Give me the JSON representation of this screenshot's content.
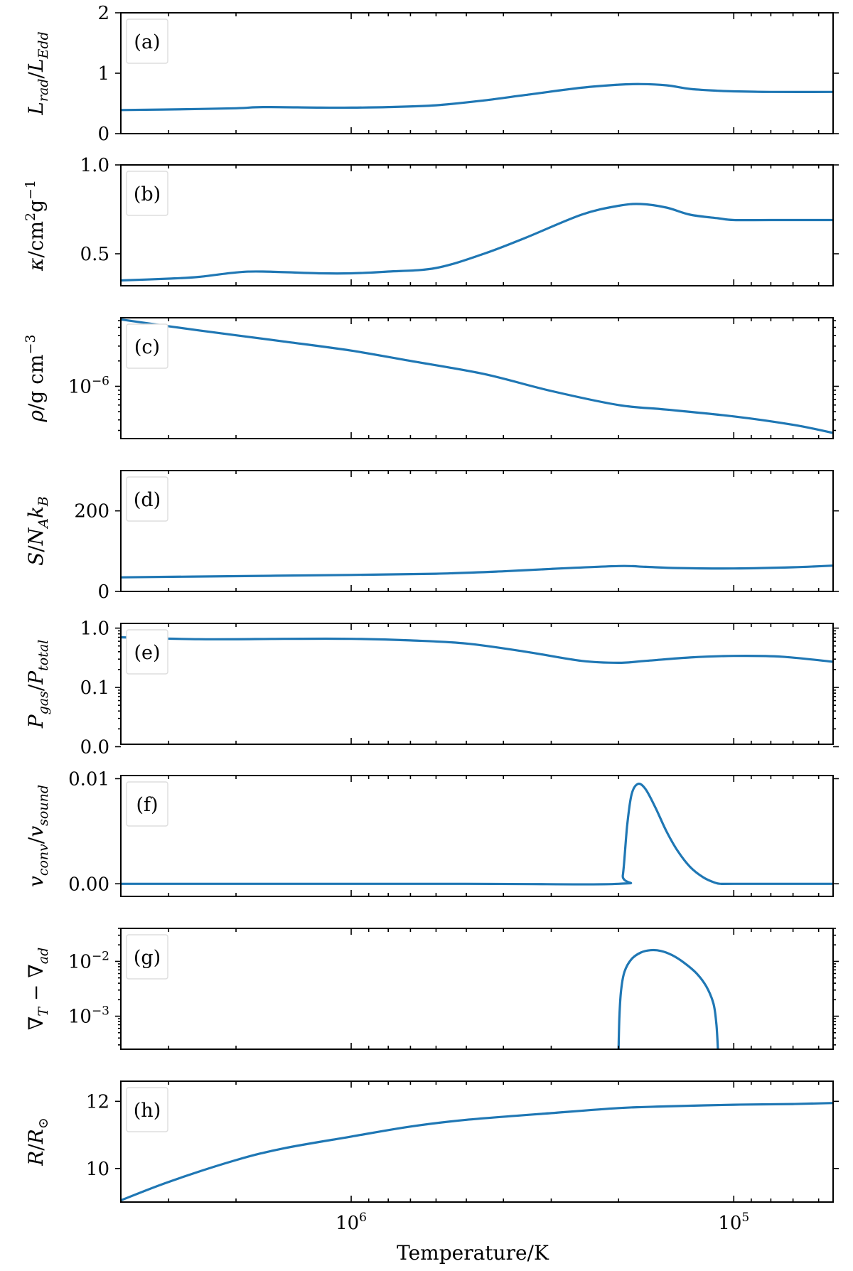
{
  "figure": {
    "xlabel": "Temperature/K",
    "x_axis": {
      "scale": "log",
      "reversed": true,
      "xlim": [
        4000000,
        55000
      ]
    },
    "x_ticks": [
      {
        "value": 1000000,
        "mantissa": "10",
        "exponent": "6"
      },
      {
        "value": 100000,
        "mantissa": "10",
        "exponent": "5"
      }
    ],
    "line_color": "#1f77b4"
  },
  "chart_data": [
    {
      "type": "line",
      "panel": "(a)",
      "ylabel": "L_rad/L_Edd",
      "y_scale": "linear",
      "ylim": [
        0,
        2
      ],
      "y_ticks": [
        {
          "value": 0,
          "label": "0"
        },
        {
          "value": 1,
          "label": "1"
        },
        {
          "value": 2,
          "label": "2"
        }
      ],
      "series": [
        {
          "name": "L_rad/L_Edd",
          "x": [
            4000000,
            3000000,
            2000000,
            1700000,
            1200000,
            1000000,
            800000,
            600000,
            450000,
            350000,
            250000,
            200000,
            175000,
            150000,
            130000,
            110000,
            100000,
            80000,
            55000
          ],
          "y": [
            0.39,
            0.4,
            0.42,
            0.44,
            0.43,
            0.43,
            0.44,
            0.47,
            0.55,
            0.64,
            0.76,
            0.81,
            0.82,
            0.8,
            0.74,
            0.71,
            0.7,
            0.69,
            0.69
          ]
        }
      ]
    },
    {
      "type": "line",
      "panel": "(b)",
      "ylabel": "κ/cm²g⁻¹",
      "y_scale": "linear",
      "ylim": [
        0.32,
        1.0
      ],
      "y_ticks": [
        {
          "value": 0.5,
          "label": "0.5"
        },
        {
          "value": 1.0,
          "label": "1.0"
        }
      ],
      "series": [
        {
          "name": "kappa",
          "x": [
            4000000,
            3000000,
            2500000,
            2000000,
            1700000,
            1200000,
            1000000,
            800000,
            600000,
            450000,
            350000,
            250000,
            200000,
            175000,
            150000,
            130000,
            110000,
            100000,
            80000,
            55000
          ],
          "y": [
            0.35,
            0.36,
            0.37,
            0.395,
            0.4,
            0.39,
            0.39,
            0.4,
            0.42,
            0.5,
            0.59,
            0.72,
            0.77,
            0.78,
            0.76,
            0.72,
            0.7,
            0.69,
            0.69,
            0.69
          ]
        }
      ]
    },
    {
      "type": "line",
      "panel": "(c)",
      "ylabel": "ρ/g cm⁻³",
      "y_scale": "log",
      "ylim": [
        2.4e-07,
        6.5e-06
      ],
      "y_ticks": [
        {
          "value": 1e-06,
          "mantissa": "10",
          "exponent": "−6"
        }
      ],
      "series": [
        {
          "name": "rho",
          "x": [
            4000000,
            2500000,
            1500000,
            1000000,
            700000,
            450000,
            300000,
            200000,
            150000,
            100000,
            70000,
            55000
          ],
          "y": [
            6.2e-06,
            4.6e-06,
            3.4e-06,
            2.65e-06,
            2e-06,
            1.4e-06,
            8.8e-07,
            6e-07,
            5.3e-07,
            4.4e-07,
            3.5e-07,
            2.8e-07
          ]
        }
      ]
    },
    {
      "type": "line",
      "panel": "(d)",
      "ylabel": "S/N_A k_B",
      "y_scale": "linear",
      "ylim": [
        0,
        300
      ],
      "y_ticks": [
        {
          "value": 0,
          "label": "0"
        },
        {
          "value": 200,
          "label": "200"
        }
      ],
      "series": [
        {
          "name": "S/N_A k_B",
          "x": [
            4000000,
            2000000,
            1000000,
            600000,
            400000,
            300000,
            200000,
            170000,
            140000,
            100000,
            70000,
            55000
          ],
          "y": [
            35,
            38,
            41,
            44,
            50,
            56,
            63,
            61,
            58,
            57,
            60,
            64
          ]
        }
      ]
    },
    {
      "type": "line",
      "panel": "(e)",
      "ylabel": "P_gas/P_total",
      "y_scale": "log",
      "ylim": [
        0.011,
        1.2
      ],
      "y_ticks": [
        {
          "value": 0.01,
          "label": "0.0"
        },
        {
          "value": 0.1,
          "label": "0.1"
        },
        {
          "value": 1.0,
          "label": "1.0"
        }
      ],
      "series": [
        {
          "name": "P_gas/P_total",
          "x": [
            4000000,
            2500000,
            1500000,
            1000000,
            700000,
            500000,
            350000,
            250000,
            200000,
            170000,
            130000,
            100000,
            75000,
            55000
          ],
          "y": [
            0.7,
            0.65,
            0.66,
            0.66,
            0.62,
            0.55,
            0.4,
            0.28,
            0.26,
            0.28,
            0.32,
            0.34,
            0.33,
            0.27
          ]
        }
      ]
    },
    {
      "type": "line",
      "panel": "(f)",
      "ylabel": "v_conv/v_sound",
      "y_scale": "linear",
      "ylim": [
        -0.0012,
        0.0103
      ],
      "y_ticks": [
        {
          "value": 0.0,
          "label": "0.00"
        },
        {
          "value": 0.01,
          "label": "0.01"
        }
      ],
      "series": [
        {
          "name": "v_conv/v_sound",
          "x": [
            4000000,
            500000,
            200000,
            195000,
            190000,
            185000,
            178000,
            170000,
            160000,
            150000,
            140000,
            130000,
            120000,
            112000,
            108000,
            100000,
            55000
          ],
          "y": [
            0,
            0,
            0,
            0.0008,
            0.0055,
            0.0085,
            0.0095,
            0.009,
            0.0072,
            0.005,
            0.0031,
            0.0016,
            0.0006,
            0.0001,
            0.0,
            0,
            0
          ]
        }
      ]
    },
    {
      "type": "line",
      "panel": "(g)",
      "ylabel": "∇_T − ∇_ad",
      "y_scale": "log",
      "ylim": [
        0.00025,
        0.04
      ],
      "y_ticks": [
        {
          "value": 0.001,
          "mantissa": "10",
          "exponent": "−3"
        },
        {
          "value": 0.01,
          "mantissa": "10",
          "exponent": "−2"
        }
      ],
      "series": [
        {
          "name": "nabla_T - nabla_ad",
          "x": [
            200000,
            199000,
            197000,
            193000,
            185000,
            175000,
            165000,
            155000,
            145000,
            135000,
            125000,
            118000,
            113000,
            111000,
            110000
          ],
          "y": [
            0.00025,
            0.001,
            0.003,
            0.0065,
            0.011,
            0.0145,
            0.016,
            0.0155,
            0.013,
            0.0095,
            0.006,
            0.0035,
            0.0017,
            0.0007,
            0.00025
          ]
        }
      ]
    },
    {
      "type": "line",
      "panel": "(h)",
      "ylabel": "R/R_⊙",
      "y_scale": "linear",
      "ylim": [
        9.0,
        12.6
      ],
      "y_ticks": [
        {
          "value": 10,
          "label": "10"
        },
        {
          "value": 12,
          "label": "12"
        }
      ],
      "series": [
        {
          "name": "R/R_sun",
          "x": [
            4000000,
            3000000,
            2000000,
            1500000,
            1000000,
            700000,
            500000,
            300000,
            200000,
            150000,
            100000,
            70000,
            55000
          ],
          "y": [
            9.05,
            9.6,
            10.25,
            10.6,
            10.95,
            11.25,
            11.45,
            11.65,
            11.8,
            11.85,
            11.9,
            11.92,
            11.95
          ]
        }
      ]
    }
  ]
}
